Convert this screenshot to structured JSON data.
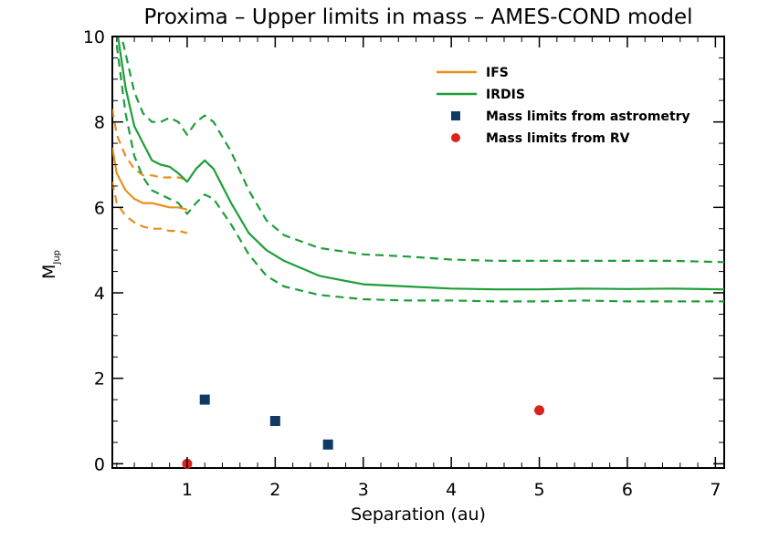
{
  "chart_data": {
    "type": "line",
    "title": "Proxima – Upper limits in mass – AMES-COND model",
    "xlabel": "Separation (au)",
    "ylabel": "M",
    "ylabel_sub": "Jup",
    "xlim": [
      0.15,
      7.1
    ],
    "ylim": [
      -0.1,
      10.0
    ],
    "xticks": [
      1,
      2,
      3,
      4,
      5,
      6,
      7
    ],
    "yticks": [
      0,
      2,
      4,
      6,
      8,
      10
    ],
    "colors": {
      "ifs": "#e8901e",
      "irdis": "#1e9e3a",
      "astrometry": "#0e3a64",
      "rv": "#d8241c"
    },
    "legend": {
      "placement": "top-right",
      "entries": [
        {
          "label": "IFS",
          "kind": "line",
          "color": "#e8901e"
        },
        {
          "label": "IRDIS",
          "kind": "line",
          "color": "#1e9e3a"
        },
        {
          "label": "Mass limits from astrometry",
          "kind": "square",
          "color": "#0e3a64"
        },
        {
          "label": "Mass limits from RV",
          "kind": "circle",
          "color": "#d8241c"
        }
      ]
    },
    "series": [
      {
        "name": "IFS",
        "style": "solid",
        "color": "#e8901e",
        "x": [
          0.15,
          0.2,
          0.3,
          0.4,
          0.5,
          0.6,
          0.7,
          0.8,
          0.9,
          1.0
        ],
        "y": [
          7.4,
          6.8,
          6.4,
          6.2,
          6.1,
          6.1,
          6.05,
          6.0,
          6.0,
          5.95
        ]
      },
      {
        "name": "IFS upper",
        "style": "dashed",
        "color": "#e8901e",
        "x": [
          0.15,
          0.2,
          0.3,
          0.4,
          0.5,
          0.6,
          0.7,
          0.8,
          0.9,
          1.0
        ],
        "y": [
          8.3,
          7.7,
          7.2,
          6.9,
          6.75,
          6.75,
          6.7,
          6.7,
          6.7,
          6.65
        ]
      },
      {
        "name": "IFS lower",
        "style": "dashed",
        "color": "#e8901e",
        "x": [
          0.15,
          0.2,
          0.3,
          0.4,
          0.5,
          0.6,
          0.7,
          0.8,
          0.9,
          1.0
        ],
        "y": [
          6.6,
          6.1,
          5.8,
          5.65,
          5.55,
          5.5,
          5.5,
          5.45,
          5.45,
          5.4
        ]
      },
      {
        "name": "IRDIS",
        "style": "solid",
        "color": "#1e9e3a",
        "x": [
          0.2,
          0.3,
          0.4,
          0.5,
          0.6,
          0.7,
          0.8,
          0.9,
          1.0,
          1.1,
          1.2,
          1.3,
          1.5,
          1.7,
          1.9,
          2.1,
          2.5,
          3.0,
          3.5,
          4.0,
          4.5,
          5.0,
          5.5,
          6.0,
          6.5,
          7.1
        ],
        "y": [
          10.2,
          8.8,
          7.9,
          7.5,
          7.1,
          7.0,
          6.95,
          6.8,
          6.6,
          6.9,
          7.1,
          6.9,
          6.1,
          5.4,
          5.0,
          4.75,
          4.4,
          4.2,
          4.15,
          4.1,
          4.08,
          4.08,
          4.1,
          4.09,
          4.1,
          4.08
        ]
      },
      {
        "name": "IRDIS upper",
        "style": "dashed",
        "color": "#1e9e3a",
        "x": [
          0.2,
          0.3,
          0.4,
          0.5,
          0.6,
          0.7,
          0.8,
          0.9,
          1.0,
          1.1,
          1.2,
          1.3,
          1.5,
          1.7,
          1.9,
          2.1,
          2.5,
          3.0,
          3.5,
          4.0,
          4.5,
          5.0,
          5.5,
          6.0,
          6.5,
          7.1
        ],
        "y": [
          10.5,
          9.6,
          8.7,
          8.2,
          8.0,
          8.0,
          8.1,
          8.0,
          7.7,
          8.0,
          8.15,
          8.0,
          7.3,
          6.4,
          5.7,
          5.35,
          5.05,
          4.9,
          4.85,
          4.78,
          4.75,
          4.75,
          4.75,
          4.75,
          4.75,
          4.72
        ]
      },
      {
        "name": "IRDIS lower",
        "style": "dashed",
        "color": "#1e9e3a",
        "x": [
          0.2,
          0.3,
          0.4,
          0.5,
          0.6,
          0.7,
          0.8,
          0.9,
          1.0,
          1.1,
          1.2,
          1.3,
          1.5,
          1.7,
          1.9,
          2.1,
          2.5,
          3.0,
          3.5,
          4.0,
          4.5,
          5.0,
          5.5,
          6.0,
          6.5,
          7.1
        ],
        "y": [
          9.8,
          8.2,
          7.2,
          6.7,
          6.4,
          6.3,
          6.2,
          6.1,
          5.85,
          6.1,
          6.3,
          6.2,
          5.6,
          4.9,
          4.4,
          4.15,
          3.95,
          3.85,
          3.82,
          3.82,
          3.8,
          3.8,
          3.82,
          3.8,
          3.8,
          3.8
        ]
      }
    ],
    "points": [
      {
        "name": "astrometry",
        "marker": "square",
        "color": "#0e3a64",
        "x": [
          1.2,
          2.0,
          2.6
        ],
        "y": [
          1.5,
          1.0,
          0.45
        ]
      },
      {
        "name": "rv",
        "marker": "circle",
        "color": "#d8241c",
        "x": [
          1.0,
          5.0
        ],
        "y": [
          0.0,
          1.25
        ]
      }
    ]
  }
}
